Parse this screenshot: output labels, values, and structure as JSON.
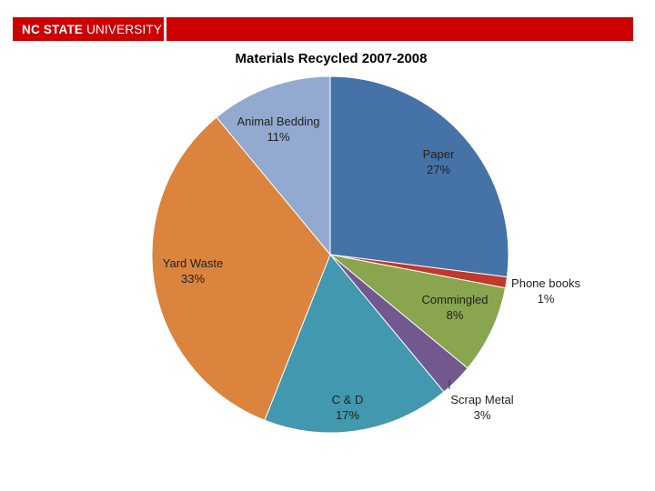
{
  "header": {
    "logo_bold": "NC STATE",
    "logo_light": "UNIVERSITY",
    "bar_color": "#cc0000"
  },
  "chart_data": {
    "type": "pie",
    "title": "Materials Recycled 2007-2008",
    "slices": [
      {
        "label": "Paper",
        "value": 27,
        "pct": "27%",
        "color": "#4572a7"
      },
      {
        "label": "Phone books",
        "value": 1,
        "pct": "1%",
        "color": "#c0392b"
      },
      {
        "label": "Commingled",
        "value": 8,
        "pct": "8%",
        "color": "#89a54e"
      },
      {
        "label": "Scrap Metal",
        "value": 3,
        "pct": "3%",
        "color": "#71588f"
      },
      {
        "label": "C & D",
        "value": 17,
        "pct": "17%",
        "color": "#4198af"
      },
      {
        "label": "Yard Waste",
        "value": 33,
        "pct": "33%",
        "color": "#db843d"
      },
      {
        "label": "Animal Bedding",
        "value": 11,
        "pct": "11%",
        "color": "#93a9cf"
      }
    ]
  }
}
